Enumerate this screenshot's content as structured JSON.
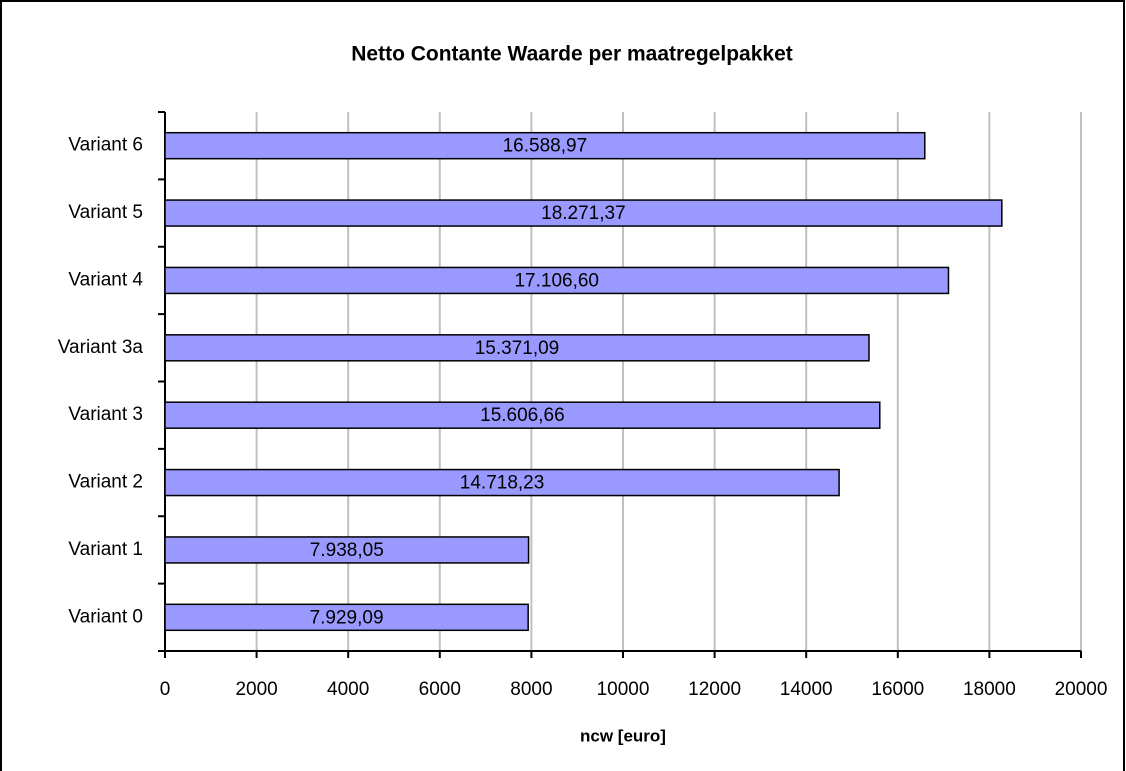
{
  "chart_data": {
    "type": "bar",
    "orientation": "horizontal",
    "title": "Netto Contante Waarde per maatregelpakket",
    "x_label": "ncw [euro]",
    "categories": [
      "Variant 0",
      "Variant 1",
      "Variant 2",
      "Variant 3",
      "Variant 3a",
      "Variant 4",
      "Variant 5",
      "Variant 6"
    ],
    "values": [
      7929.09,
      7938.05,
      14718.23,
      15606.66,
      15371.09,
      17106.6,
      18271.37,
      16588.97
    ],
    "value_labels": [
      "7.929,09",
      "7.938,05",
      "14.718,23",
      "15.606,66",
      "15.371,09",
      "17.106,60",
      "18.271,37",
      "16.588,97"
    ],
    "color": "#9999ff",
    "xlim": [
      0,
      20000
    ],
    "xticks": [
      0,
      2000,
      4000,
      6000,
      8000,
      10000,
      12000,
      14000,
      16000,
      18000,
      20000
    ],
    "grid": true
  }
}
